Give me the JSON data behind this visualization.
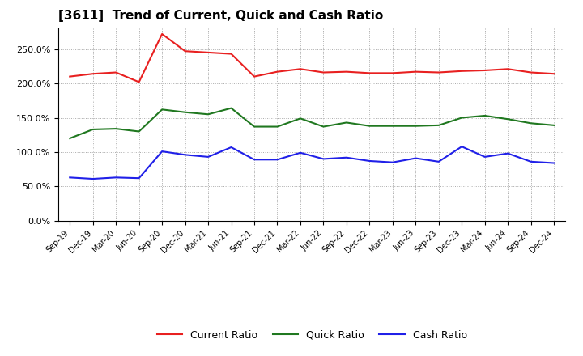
{
  "title": "[3611]  Trend of Current, Quick and Cash Ratio",
  "x_labels": [
    "Sep-19",
    "Dec-19",
    "Mar-20",
    "Jun-20",
    "Sep-20",
    "Dec-20",
    "Mar-21",
    "Jun-21",
    "Sep-21",
    "Dec-21",
    "Mar-22",
    "Jun-22",
    "Sep-22",
    "Dec-22",
    "Mar-23",
    "Jun-23",
    "Sep-23",
    "Dec-23",
    "Mar-24",
    "Jun-24",
    "Sep-24",
    "Dec-24"
  ],
  "current_ratio": [
    2.1,
    2.14,
    2.16,
    2.02,
    2.72,
    2.47,
    2.45,
    2.43,
    2.1,
    2.17,
    2.21,
    2.16,
    2.17,
    2.15,
    2.15,
    2.17,
    2.16,
    2.18,
    2.19,
    2.21,
    2.16,
    2.14
  ],
  "quick_ratio": [
    1.2,
    1.33,
    1.34,
    1.3,
    1.62,
    1.58,
    1.55,
    1.64,
    1.37,
    1.37,
    1.49,
    1.37,
    1.43,
    1.38,
    1.38,
    1.38,
    1.39,
    1.5,
    1.53,
    1.48,
    1.42,
    1.39
  ],
  "cash_ratio": [
    0.63,
    0.61,
    0.63,
    0.62,
    1.01,
    0.96,
    0.93,
    1.07,
    0.89,
    0.89,
    0.99,
    0.9,
    0.92,
    0.87,
    0.85,
    0.91,
    0.86,
    1.08,
    0.93,
    0.98,
    0.86,
    0.84
  ],
  "current_color": "#e82020",
  "quick_color": "#207820",
  "cash_color": "#2020e8",
  "bg_color": "#ffffff",
  "grid_color": "#aaaaaa",
  "ylim": [
    0.0,
    2.8
  ],
  "yticks": [
    0.0,
    0.5,
    1.0,
    1.5,
    2.0,
    2.5
  ],
  "ytick_labels": [
    "0.0%",
    "50.0%",
    "100.0%",
    "150.0%",
    "200.0%",
    "250.0%"
  ],
  "legend_labels": [
    "Current Ratio",
    "Quick Ratio",
    "Cash Ratio"
  ]
}
